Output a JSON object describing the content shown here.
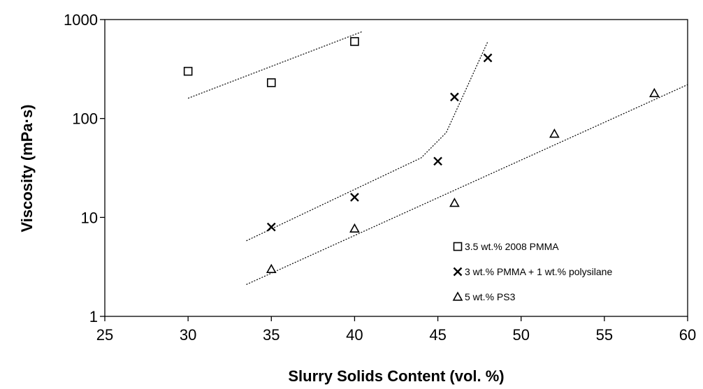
{
  "chart_data": {
    "type": "scatter",
    "xlabel": "Slurry Solids Content (vol. %)",
    "ylabel": "Viscosity (mPa·s)",
    "xlim": [
      25,
      60
    ],
    "ylim": [
      1,
      1000
    ],
    "yscale": "log",
    "grid": false,
    "legend_position": "bottom-right",
    "x_ticks": [
      25,
      30,
      35,
      40,
      45,
      50,
      55,
      60
    ],
    "y_ticks": [
      1,
      10,
      100,
      1000
    ],
    "x_tick_labels": [
      "25",
      "30",
      "35",
      "40",
      "45",
      "50",
      "55",
      "60"
    ],
    "y_tick_labels": [
      "1",
      "10",
      "100",
      "1000"
    ],
    "series": [
      {
        "name": "3.5 wt.% 2008 PMMA",
        "marker": "square",
        "x": [
          30,
          35,
          40
        ],
        "y": [
          300,
          230,
          600
        ],
        "trendline": [
          [
            30,
            160
          ],
          [
            40.5,
            760
          ]
        ]
      },
      {
        "name": "3 wt.% PMMA + 1 wt.% polysilane",
        "marker": "x",
        "x": [
          35,
          40,
          45,
          46,
          48
        ],
        "y": [
          8,
          16,
          37,
          165,
          410
        ],
        "trendline": [
          [
            33.5,
            5.8
          ],
          [
            44,
            40
          ],
          [
            45.5,
            72
          ],
          [
            48,
            600
          ]
        ]
      },
      {
        "name": "5 wt.% PS3",
        "marker": "triangle",
        "x": [
          35,
          40,
          46,
          52,
          58
        ],
        "y": [
          3,
          7.7,
          14,
          70,
          180
        ],
        "trendline": [
          [
            33.5,
            2.1
          ],
          [
            60,
            220
          ]
        ]
      }
    ]
  }
}
